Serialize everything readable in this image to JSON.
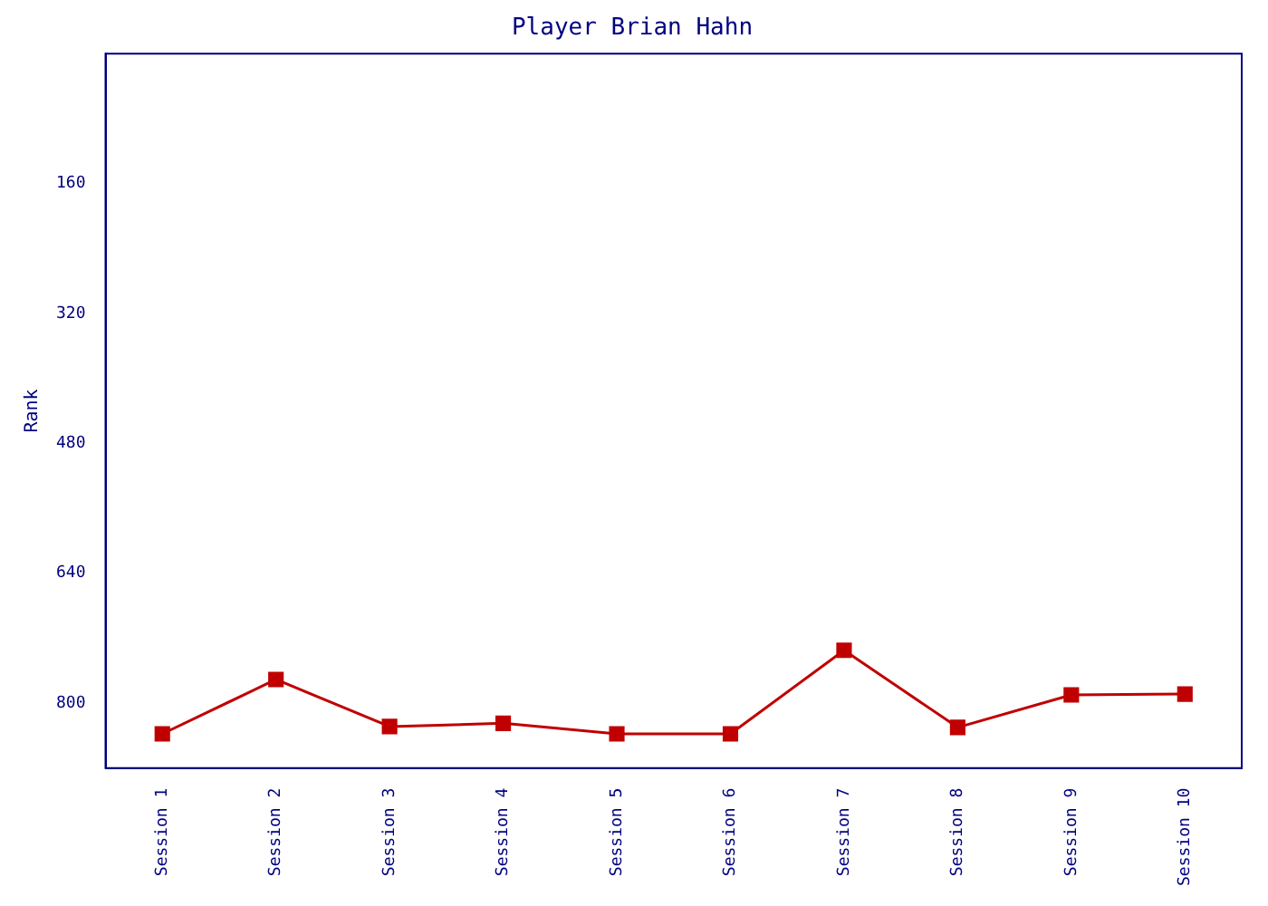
{
  "chart_data": {
    "type": "line",
    "title": "Player Brian Hahn",
    "ylabel": "Rank",
    "categories": [
      "Session 1",
      "Session 2",
      "Session 3",
      "Session 4",
      "Session 5",
      "Session 6",
      "Session 7",
      "Session 8",
      "Session 9",
      "Session 10"
    ],
    "series": [
      {
        "color": "#c00000",
        "values": [
          838,
          771,
          829,
          825,
          838,
          838,
          735,
          830,
          790,
          789
        ]
      }
    ],
    "ylim": [
      880,
      0
    ],
    "yticks": [
      160,
      320,
      480,
      640,
      800
    ],
    "grid": false,
    "legend": false,
    "marker": "square",
    "line_style": "solid"
  }
}
